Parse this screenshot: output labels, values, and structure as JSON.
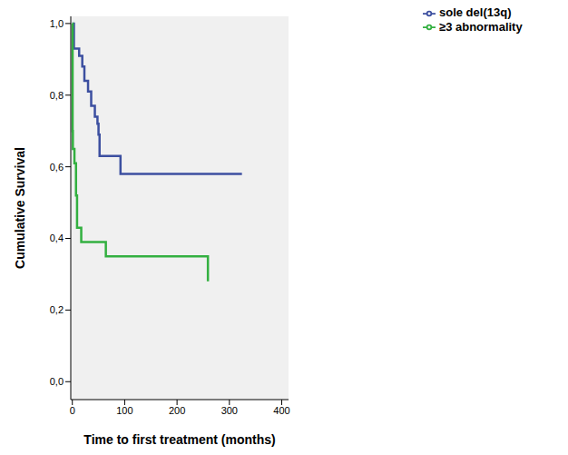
{
  "chart_data": {
    "type": "line",
    "x_label": "Time to first treatment (months)",
    "y_label": "Cumulative Survival",
    "xlim": [
      -3,
      413
    ],
    "xticks": [
      0,
      100,
      200,
      300,
      400
    ],
    "ylim": [
      -0.05,
      1.02
    ],
    "yticks": [
      {
        "value": 0,
        "label": "0,0"
      },
      {
        "value": 0.2,
        "label": "0,2"
      },
      {
        "value": 0.4,
        "label": "0,4"
      },
      {
        "value": 0.6,
        "label": "0,6"
      },
      {
        "value": 0.8,
        "label": "0,8"
      },
      {
        "value": 1,
        "label": "1,0"
      }
    ],
    "grid": false,
    "legend": "right",
    "line_style": "step",
    "series": [
      {
        "name": "sole del(13q)",
        "color": "#3c4fa0",
        "x": [
          0,
          3,
          13,
          19,
          23,
          30,
          36,
          43,
          48,
          50,
          52,
          92,
          324
        ],
        "values": [
          1.0,
          0.93,
          0.91,
          0.88,
          0.84,
          0.81,
          0.77,
          0.74,
          0.72,
          0.69,
          0.63,
          0.58,
          0.58
        ]
      },
      {
        "name": "≥3 abnormality",
        "color": "#33b040",
        "x": [
          0,
          0.5,
          1,
          4,
          7,
          9,
          17,
          64,
          259
        ],
        "values": [
          1.0,
          0.7,
          0.65,
          0.61,
          0.52,
          0.43,
          0.39,
          0.35,
          0.28
        ]
      }
    ]
  }
}
